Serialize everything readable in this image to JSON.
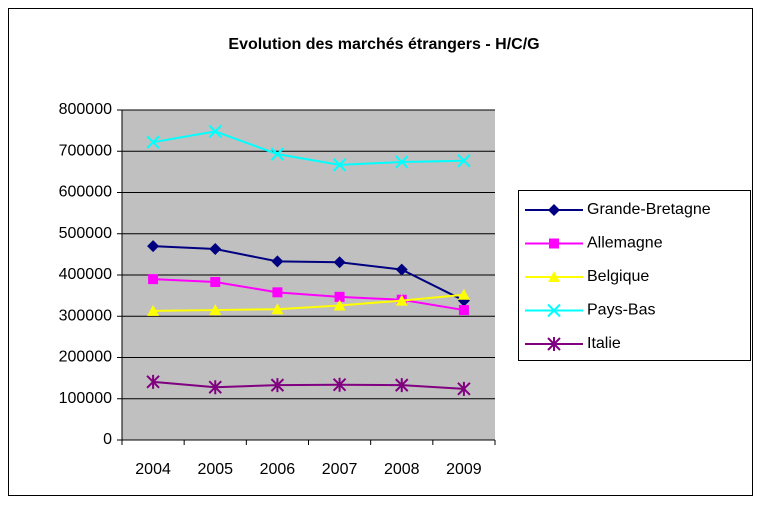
{
  "chart_data": {
    "type": "line",
    "title": "Evolution des marchés étrangers - H/C/G",
    "categories": [
      "2004",
      "2005",
      "2006",
      "2007",
      "2008",
      "2009"
    ],
    "series": [
      {
        "name": "Grande-Bretagne",
        "color": "#000080",
        "marker": "diamond",
        "values": [
          470000,
          463000,
          433000,
          431000,
          413000,
          338000
        ]
      },
      {
        "name": "Allemagne",
        "color": "#ff00ff",
        "marker": "square",
        "values": [
          390000,
          383000,
          358000,
          347000,
          340000,
          315000
        ]
      },
      {
        "name": "Belgique",
        "color": "#ffff00",
        "marker": "triangle",
        "values": [
          313000,
          315000,
          317000,
          326000,
          338000,
          352000
        ]
      },
      {
        "name": "Pays-Bas",
        "color": "#00ffff",
        "marker": "x",
        "values": [
          722000,
          748000,
          693000,
          667000,
          674000,
          677000
        ]
      },
      {
        "name": "Italie",
        "color": "#800080",
        "marker": "star",
        "values": [
          141000,
          128000,
          133000,
          134000,
          133000,
          124000
        ]
      }
    ],
    "ylim": [
      0,
      800000
    ],
    "yticks": [
      0,
      100000,
      200000,
      300000,
      400000,
      500000,
      600000,
      700000,
      800000
    ],
    "grid": true,
    "legend": "right"
  }
}
